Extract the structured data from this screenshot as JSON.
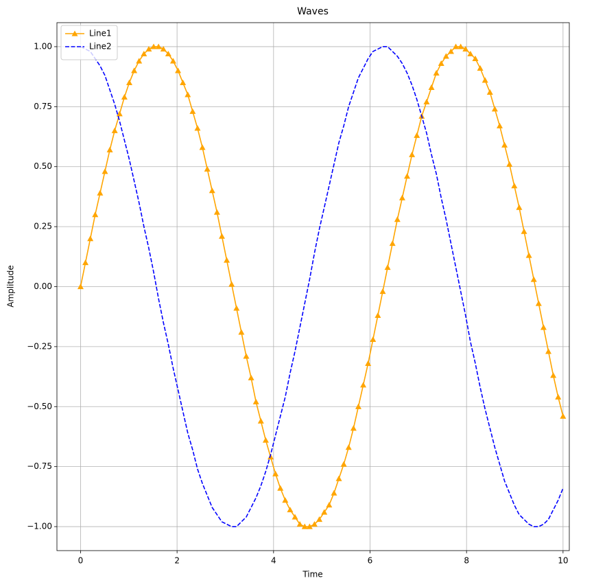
{
  "chart_data": {
    "type": "line",
    "title": "Waves",
    "x_label": "Time",
    "y_label": "Amplitude",
    "x": [
      0,
      0.101,
      0.202,
      0.303,
      0.404,
      0.505,
      0.606,
      0.707,
      0.808,
      0.909,
      1.01,
      1.111,
      1.212,
      1.313,
      1.414,
      1.515,
      1.616,
      1.717,
      1.818,
      1.919,
      2.02,
      2.121,
      2.222,
      2.323,
      2.424,
      2.525,
      2.626,
      2.727,
      2.828,
      2.929,
      3.03,
      3.131,
      3.232,
      3.333,
      3.434,
      3.535,
      3.636,
      3.737,
      3.838,
      3.939,
      4.04,
      4.141,
      4.242,
      4.343,
      4.444,
      4.545,
      4.646,
      4.747,
      4.848,
      4.949,
      5.051,
      5.152,
      5.253,
      5.354,
      5.455,
      5.556,
      5.657,
      5.758,
      5.859,
      5.96,
      6.061,
      6.162,
      6.263,
      6.364,
      6.465,
      6.566,
      6.667,
      6.768,
      6.869,
      6.97,
      7.071,
      7.172,
      7.273,
      7.374,
      7.475,
      7.576,
      7.677,
      7.778,
      7.879,
      7.98,
      8.081,
      8.182,
      8.283,
      8.384,
      8.485,
      8.586,
      8.687,
      8.788,
      8.889,
      8.99,
      9.091,
      9.192,
      9.293,
      9.394,
      9.495,
      9.596,
      9.697,
      9.798,
      9.899,
      10
    ],
    "series": [
      {
        "name": "Line1",
        "color": "orange",
        "marker": "^",
        "linestyle": "solid",
        "values": [
          0,
          0.1,
          0.2,
          0.3,
          0.39,
          0.48,
          0.57,
          0.65,
          0.72,
          0.79,
          0.85,
          0.9,
          0.94,
          0.97,
          0.99,
          1.0,
          1.0,
          0.99,
          0.97,
          0.94,
          0.9,
          0.85,
          0.8,
          0.73,
          0.66,
          0.58,
          0.49,
          0.4,
          0.31,
          0.21,
          0.11,
          0.01,
          -0.09,
          -0.19,
          -0.29,
          -0.38,
          -0.48,
          -0.56,
          -0.64,
          -0.71,
          -0.78,
          -0.84,
          -0.89,
          -0.93,
          -0.96,
          -0.99,
          -1.0,
          -1.0,
          -0.99,
          -0.97,
          -0.94,
          -0.91,
          -0.86,
          -0.8,
          -0.74,
          -0.67,
          -0.59,
          -0.5,
          -0.41,
          -0.32,
          -0.22,
          -0.12,
          -0.02,
          0.08,
          0.18,
          0.28,
          0.37,
          0.46,
          0.55,
          0.63,
          0.71,
          0.77,
          0.83,
          0.89,
          0.93,
          0.96,
          0.98,
          1.0,
          1.0,
          0.99,
          0.97,
          0.95,
          0.91,
          0.86,
          0.81,
          0.74,
          0.67,
          0.59,
          0.51,
          0.42,
          0.33,
          0.23,
          0.13,
          0.03,
          -0.07,
          -0.17,
          -0.27,
          -0.37,
          -0.46,
          -0.54
        ]
      },
      {
        "name": "Line2",
        "color": "blue",
        "linestyle": "dashed",
        "values": [
          1.0,
          0.99,
          0.98,
          0.95,
          0.92,
          0.88,
          0.82,
          0.76,
          0.69,
          0.61,
          0.53,
          0.44,
          0.35,
          0.25,
          0.16,
          0.06,
          -0.05,
          -0.15,
          -0.24,
          -0.34,
          -0.43,
          -0.52,
          -0.61,
          -0.68,
          -0.76,
          -0.82,
          -0.87,
          -0.92,
          -0.95,
          -0.98,
          -0.99,
          -1.0,
          -1.0,
          -0.98,
          -0.96,
          -0.92,
          -0.88,
          -0.83,
          -0.77,
          -0.7,
          -0.62,
          -0.54,
          -0.46,
          -0.36,
          -0.27,
          -0.17,
          -0.07,
          0.03,
          0.14,
          0.24,
          0.33,
          0.42,
          0.51,
          0.6,
          0.67,
          0.75,
          0.81,
          0.87,
          0.91,
          0.95,
          0.98,
          0.99,
          1.0,
          1.0,
          0.98,
          0.96,
          0.93,
          0.89,
          0.84,
          0.78,
          0.71,
          0.64,
          0.55,
          0.47,
          0.37,
          0.28,
          0.18,
          0.08,
          -0.02,
          -0.12,
          -0.23,
          -0.32,
          -0.42,
          -0.51,
          -0.59,
          -0.67,
          -0.74,
          -0.81,
          -0.86,
          -0.91,
          -0.95,
          -0.97,
          -0.99,
          -1.0,
          -1.0,
          -0.99,
          -0.97,
          -0.93,
          -0.89,
          -0.84
        ]
      }
    ],
    "xlim": [
      -0.49,
      10.13
    ],
    "ylim": [
      -1.1,
      1.1
    ],
    "xticks": [
      0,
      2,
      4,
      6,
      8,
      10
    ],
    "yticks": [
      {
        "value": -1,
        "label": "−1.00"
      },
      {
        "value": -0.75,
        "label": "−0.75"
      },
      {
        "value": -0.5,
        "label": "−0.50"
      },
      {
        "value": -0.25,
        "label": "−0.25"
      },
      {
        "value": 0,
        "label": "0.00"
      },
      {
        "value": 0.25,
        "label": "0.25"
      },
      {
        "value": 0.5,
        "label": "0.50"
      },
      {
        "value": 0.75,
        "label": "0.75"
      },
      {
        "value": 1,
        "label": "1.00"
      }
    ],
    "grid": true,
    "legend": "upper left"
  }
}
